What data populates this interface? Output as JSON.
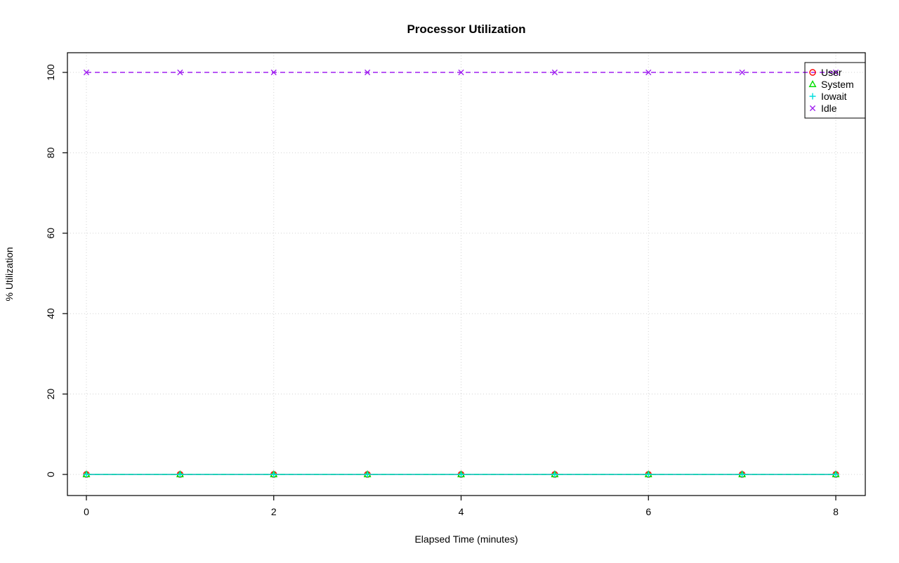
{
  "chart_data": {
    "type": "line",
    "title": "Processor Utilization",
    "xlabel": "Elapsed Time (minutes)",
    "ylabel": "% Utilization",
    "x": [
      0,
      1,
      2,
      3,
      4,
      5,
      6,
      7,
      8
    ],
    "xlim": [
      0,
      8
    ],
    "ylim": [
      0,
      100
    ],
    "xticks": [
      0,
      2,
      4,
      6,
      8
    ],
    "yticks": [
      0,
      20,
      40,
      60,
      80,
      100
    ],
    "grid": true,
    "grid_color": "#d3d3d3",
    "legend_position": "top-right",
    "series": [
      {
        "name": "User",
        "color": "#ff0000",
        "marker": "circle",
        "line": "solid",
        "values": [
          0,
          0,
          0,
          0,
          0,
          0,
          0,
          0,
          0
        ]
      },
      {
        "name": "System",
        "color": "#00dd00",
        "marker": "triangle",
        "line": "dashed",
        "values": [
          0,
          0,
          0,
          0,
          0,
          0,
          0,
          0,
          0
        ]
      },
      {
        "name": "Iowait",
        "color": "#00dddd",
        "marker": "plus",
        "line": "solid",
        "values": [
          0,
          0,
          0,
          0,
          0,
          0,
          0,
          0,
          0
        ]
      },
      {
        "name": "Idle",
        "color": "#a020f0",
        "marker": "x",
        "line": "dashed",
        "values": [
          100,
          100,
          100,
          100,
          100,
          100,
          100,
          100,
          100
        ]
      }
    ]
  }
}
